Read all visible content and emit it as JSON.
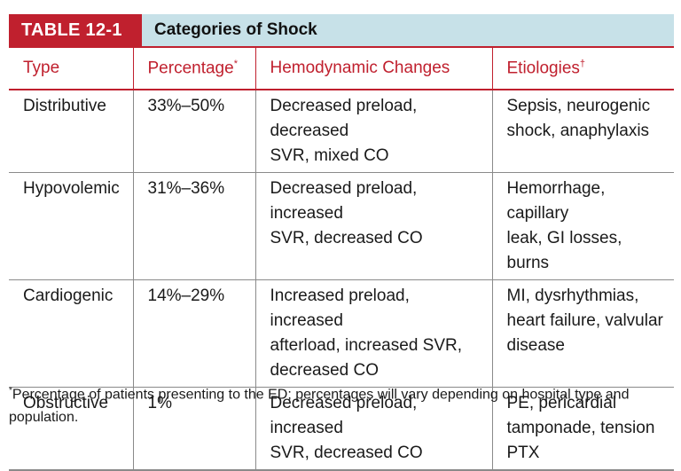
{
  "table": {
    "label": "TABLE 12-1",
    "title": "Categories of Shock",
    "headers": [
      "Type",
      "Percentage",
      "Hemodynamic Changes",
      "Etiologies"
    ],
    "header_marks": [
      "",
      "*",
      "",
      "†"
    ],
    "rows": [
      {
        "type": "Distributive",
        "percentage": "33%–50%",
        "hemodynamic": [
          "Decreased preload, decreased",
          "SVR, mixed CO"
        ],
        "etiologies": [
          "Sepsis, neurogenic",
          "shock, anaphylaxis"
        ]
      },
      {
        "type": "Hypovolemic",
        "percentage": "31%–36%",
        "hemodynamic": [
          "Decreased preload, increased",
          "SVR, decreased CO"
        ],
        "etiologies": [
          "Hemorrhage, capillary",
          "leak, GI losses, burns"
        ]
      },
      {
        "type": "Cardiogenic",
        "percentage": "14%–29%",
        "hemodynamic": [
          "Increased preload, increased",
          "afterload, increased SVR,",
          "decreased CO"
        ],
        "etiologies": [
          "MI, dysrhythmias,",
          "heart failure, valvular",
          "disease"
        ]
      },
      {
        "type": "Obstructive",
        "percentage": "1%",
        "hemodynamic": [
          "Decreased preload, increased",
          "SVR, decreased CO"
        ],
        "etiologies": [
          "PE, pericardial",
          "tamponade, tension",
          "PTX"
        ]
      }
    ]
  },
  "footnote": {
    "mark": "*",
    "lines": [
      "Percentage of patients presenting to the ED; percentages will vary depending on hospital type and",
      "population."
    ]
  },
  "colors": {
    "accent_red": "#c0202e",
    "title_bar_blue": "#c7e1e8"
  }
}
